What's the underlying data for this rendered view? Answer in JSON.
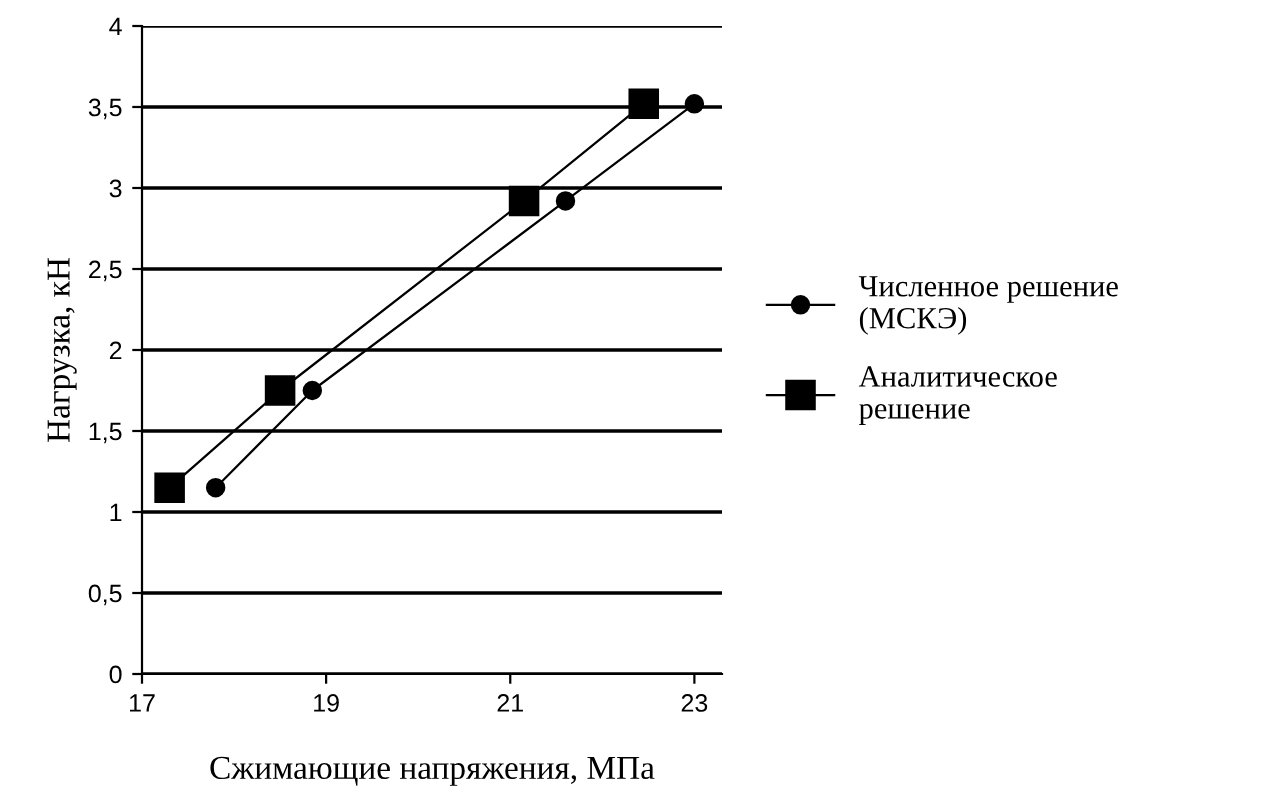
{
  "chart_data": {
    "type": "line",
    "xlabel": "Сжимающие напряжения, МПа",
    "ylabel": "Нагрузка, кН",
    "xlim": [
      17,
      23.3
    ],
    "xticks": [
      17,
      19,
      21,
      23
    ],
    "ylim": [
      0,
      4
    ],
    "yticks": [
      {
        "value": 0,
        "label": "0"
      },
      {
        "value": 0.5,
        "label": "0,5"
      },
      {
        "value": 1,
        "label": "1"
      },
      {
        "value": 1.5,
        "label": "1,5"
      },
      {
        "value": 2,
        "label": "2"
      },
      {
        "value": 2.5,
        "label": "2,5"
      },
      {
        "value": 3,
        "label": "3"
      },
      {
        "value": 3.5,
        "label": "3,5"
      },
      {
        "value": 4,
        "label": "4"
      }
    ],
    "grid": "y",
    "legend": "right",
    "series": [
      {
        "name": "Численное решение\n(МСКЭ)",
        "color": "#000000",
        "marker": "circle",
        "x": [
          17.8,
          18.85,
          21.6,
          23.0
        ],
        "values": [
          1.15,
          1.75,
          2.92,
          3.52
        ]
      },
      {
        "name": "Аналитическое\nрешение",
        "color": "#000000",
        "marker": "square",
        "x": [
          17.3,
          18.5,
          21.15,
          22.45
        ],
        "values": [
          1.15,
          1.75,
          2.92,
          3.52
        ]
      }
    ]
  }
}
